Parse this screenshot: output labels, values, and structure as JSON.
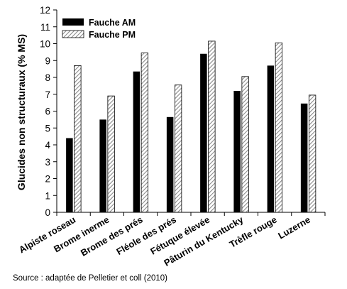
{
  "chart_data": {
    "type": "bar",
    "title": "",
    "xlabel": "",
    "ylabel": "Glucides non structuraux (% MS)",
    "ylim": [
      0,
      12
    ],
    "yticks": [
      0,
      1,
      2,
      3,
      4,
      5,
      6,
      7,
      8,
      9,
      10,
      11,
      12
    ],
    "grid": false,
    "legend_position": "top-left",
    "categories": [
      "Alpiste roseau",
      "Brome inerme",
      "Brome des prés",
      "Fléole des prés",
      "Fétuque élevée",
      "Pâturin du Kentucky",
      "Trèfle rouge",
      "Luzerne"
    ],
    "series": [
      {
        "name": "Fauche AM",
        "style": "solid",
        "color": "#000000",
        "values": [
          4.4,
          5.5,
          8.35,
          5.65,
          9.4,
          7.2,
          8.7,
          6.45
        ]
      },
      {
        "name": "Fauche PM",
        "style": "hatched",
        "color": "#9a9a9a",
        "values": [
          8.7,
          6.9,
          9.45,
          7.55,
          10.15,
          8.05,
          10.05,
          6.95
        ]
      }
    ]
  },
  "source": {
    "text": "Source : adaptée de Pelletier et coll (2010)"
  }
}
